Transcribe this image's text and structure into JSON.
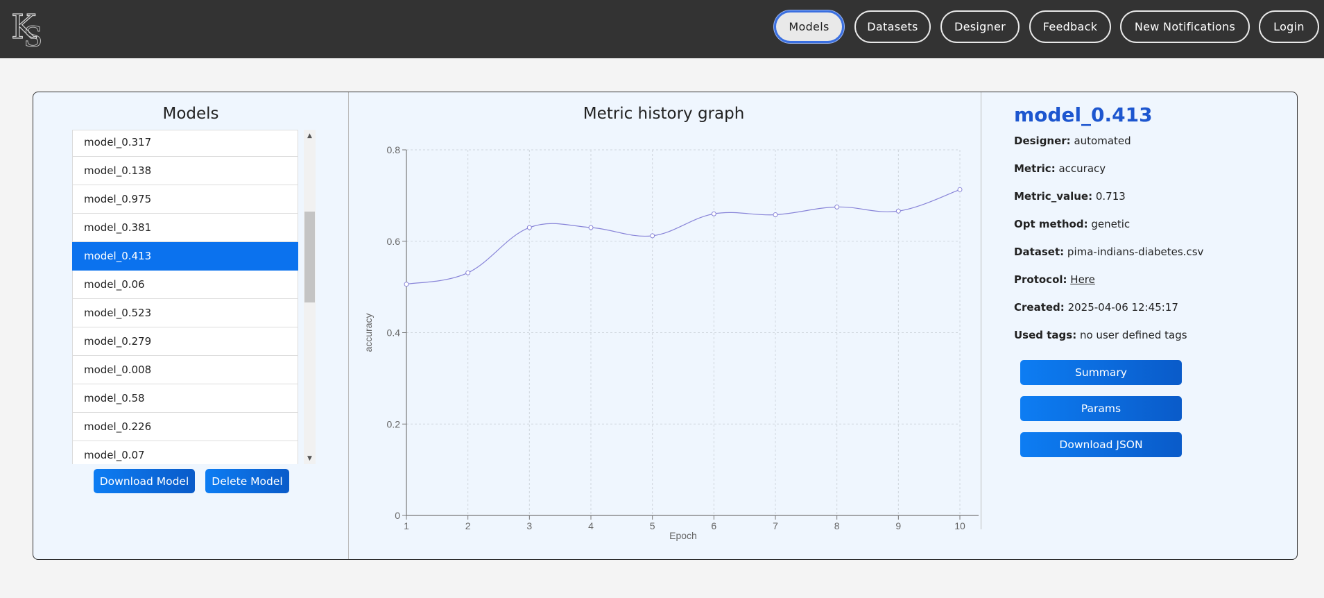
{
  "nav": {
    "logo_text": "KS",
    "items": [
      {
        "label": "Models",
        "active": true
      },
      {
        "label": "Datasets",
        "active": false
      },
      {
        "label": "Designer",
        "active": false
      },
      {
        "label": "Feedback",
        "active": false
      },
      {
        "label": "New Notifications",
        "active": false
      },
      {
        "label": "Login",
        "active": false
      }
    ]
  },
  "models_panel": {
    "title": "Models",
    "items": [
      "model_0.317",
      "model_0.138",
      "model_0.975",
      "model_0.381",
      "model_0.413",
      "model_0.06",
      "model_0.523",
      "model_0.279",
      "model_0.008",
      "model_0.58",
      "model_0.226",
      "model_0.07"
    ],
    "selected_index": 4,
    "scroll_position_fraction": 0.24,
    "download_label": "Download Model",
    "delete_label": "Delete Model",
    "scroll_up_icon": "triangle-up-icon",
    "scroll_down_icon": "triangle-down-icon"
  },
  "chart_panel": {
    "title": "Metric history graph"
  },
  "chart_data": {
    "type": "line",
    "title": "Metric history graph",
    "legend": [
      "accuracy"
    ],
    "legend_position": "top-center",
    "xlabel": "Epoch",
    "ylabel": "accuracy",
    "x": [
      1,
      2,
      3,
      4,
      5,
      6,
      7,
      8,
      9,
      10
    ],
    "series": [
      {
        "name": "accuracy",
        "values": [
          0.506,
          0.531,
          0.63,
          0.63,
          0.612,
          0.66,
          0.658,
          0.675,
          0.666,
          0.713
        ]
      }
    ],
    "ylim": [
      0,
      0.8
    ],
    "yticks": [
      0,
      0.2,
      0.4,
      0.6,
      0.8
    ],
    "ytick_labels": [
      "0",
      "0.2",
      "0.4",
      "0.6",
      "0.8"
    ],
    "xticks": [
      1,
      2,
      3,
      4,
      5,
      6,
      7,
      8,
      9,
      10
    ],
    "xtick_labels": [
      "1",
      "2",
      "3",
      "4",
      "5",
      "6",
      "7",
      "8",
      "9",
      "10"
    ],
    "grid": true,
    "line_color": "#8884d8"
  },
  "details": {
    "name": "model_0.413",
    "rows": [
      {
        "key": "Designer:",
        "value": "automated"
      },
      {
        "key": "Metric:",
        "value": "accuracy"
      },
      {
        "key": "Metric_value:",
        "value": "0.713"
      },
      {
        "key": "Opt method:",
        "value": "genetic"
      },
      {
        "key": "Dataset:",
        "value": "pima-indians-diabetes.csv"
      },
      {
        "key": "Protocol:",
        "value": "Here",
        "link": true
      },
      {
        "key": "Created:",
        "value": "2025-04-06 12:45:17"
      },
      {
        "key": "Used tags:",
        "value": "no user defined tags"
      }
    ],
    "buttons": [
      "Summary",
      "Params",
      "Download JSON"
    ]
  },
  "colors": {
    "navbar": "#333333",
    "accent": "#0b72ee",
    "model_name": "#1d56cf",
    "card_bg": "#eff6fe"
  }
}
